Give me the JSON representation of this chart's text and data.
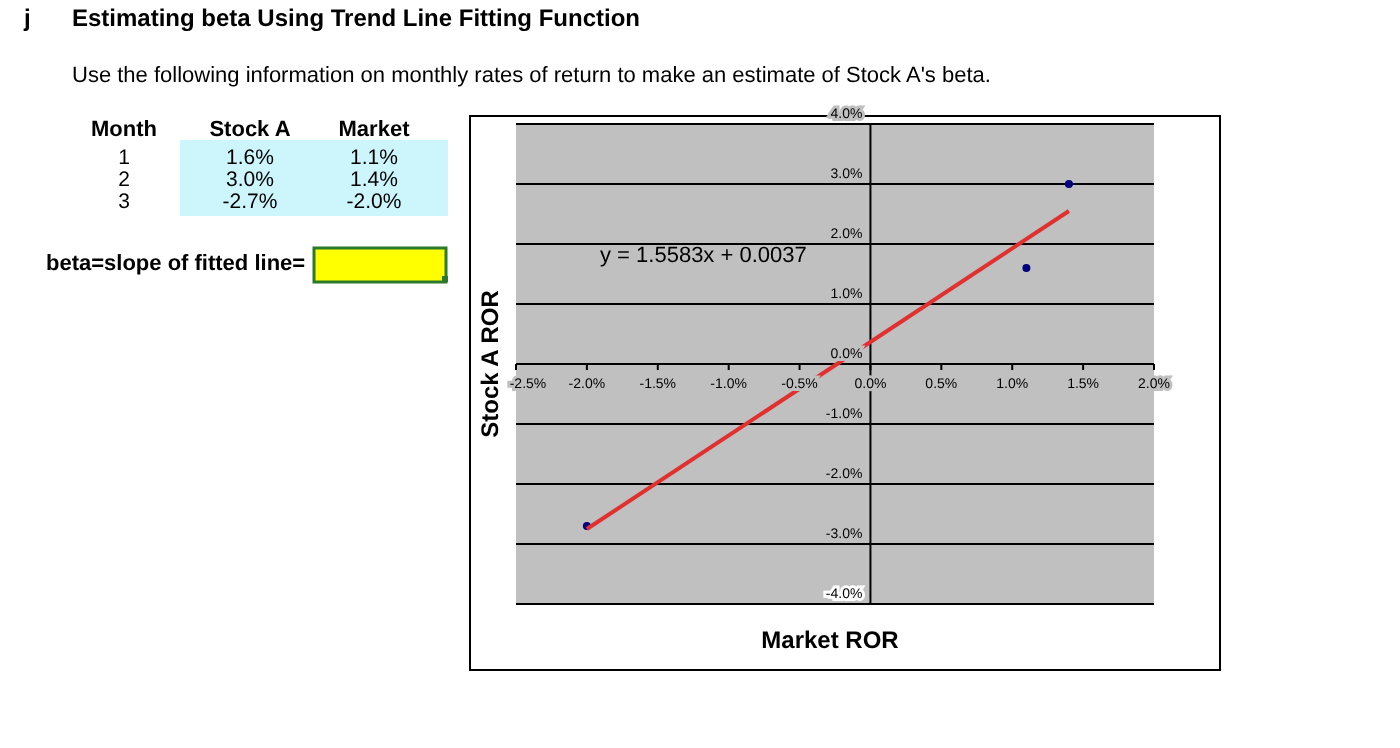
{
  "chart_data": {
    "type": "scatter",
    "title": "Estimating beta Using Trend Line Fitting Function",
    "subtitle": "Use the following information on monthly rates of return to make an estimate of Stock A's  beta.",
    "xlabel": "Market ROR",
    "ylabel": "Stock A ROR",
    "annotations": [
      "j",
      "Month",
      "Stock A",
      "Market",
      "1",
      "1.6%",
      "1.1%",
      "2",
      "3.0%",
      "1.4%",
      "3",
      "-2.7%",
      "-2.0%",
      "beta=slope of fitted line=",
      "y = 1.5583x + 0.0037"
    ],
    "series": [
      {
        "color": "#000080",
        "x": [
          1.1,
          1.4,
          -2.0
        ],
        "values": [
          1.6,
          3.0,
          -2.7
        ],
        "marker": "circle"
      },
      {
        "type": "line",
        "color": "#e03030",
        "x": [
          -2.0,
          1.4
        ],
        "values": [
          -2.75,
          2.55
        ],
        "marker": "none",
        "line_style": "solid"
      }
    ],
    "xlim": [
      -2.5,
      2.0
    ],
    "xticks": [
      {
        "value": -2.5,
        "label": "-2.5%"
      },
      {
        "value": -2.0,
        "label": "-2.0%"
      },
      {
        "value": -1.5,
        "label": "-1.5%"
      },
      {
        "value": -1.0,
        "label": "-1.0%"
      },
      {
        "value": -0.5,
        "label": "-0.5%"
      },
      {
        "value": 0,
        "label": "0.0%"
      },
      {
        "value": 0.5,
        "label": "0.5%"
      },
      {
        "value": 1.0,
        "label": "1.0%"
      },
      {
        "value": 1.5,
        "label": "1.5%"
      },
      {
        "value": 2.0,
        "label": "2.0%"
      }
    ],
    "ylim": [
      -4,
      4
    ],
    "yticks": [
      {
        "value": -4,
        "label": "-4.0%"
      },
      {
        "value": -3,
        "label": "-3.0%"
      },
      {
        "value": -2,
        "label": "-2.0%"
      },
      {
        "value": -1,
        "label": "-1.0%"
      },
      {
        "value": 0,
        "label": "0.0%"
      },
      {
        "value": 1,
        "label": "1.0%"
      },
      {
        "value": 2,
        "label": "2.0%"
      },
      {
        "value": 3,
        "label": "3.0%"
      },
      {
        "value": 4,
        "label": "4.0%"
      }
    ],
    "grid": "y"
  }
}
